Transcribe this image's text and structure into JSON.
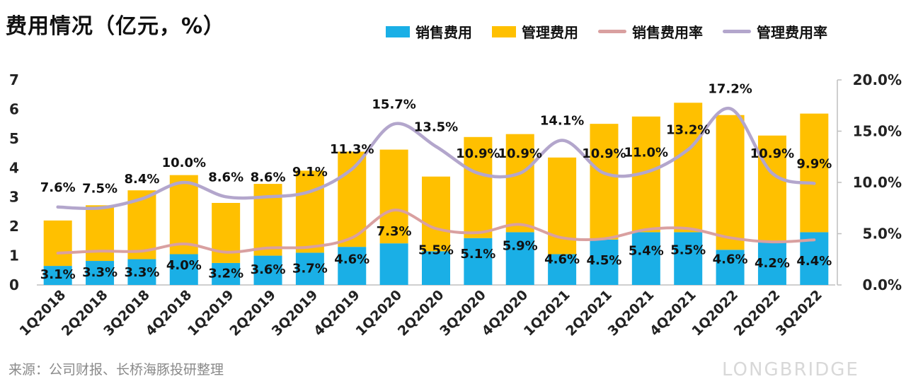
{
  "title": "费用情况（亿元，%）",
  "source": "来源：公司财报、长桥海豚投研整理",
  "watermark": "LONGBRIDGE",
  "colors": {
    "sales_bar": "#1AAFE6",
    "admin_bar": "#FFC000",
    "sales_rate_line": "#D9A0A0",
    "admin_rate_line": "#B3A6CC"
  },
  "chart_data": {
    "type": "bar",
    "stacked": true,
    "categories": [
      "1Q2018",
      "2Q2018",
      "3Q2018",
      "4Q2018",
      "1Q2019",
      "2Q2019",
      "3Q2019",
      "4Q2019",
      "1Q2020",
      "2Q2020",
      "3Q2020",
      "4Q2020",
      "1Q2021",
      "2Q2021",
      "3Q2021",
      "4Q2021",
      "1Q2022",
      "2Q2022",
      "3Q2022"
    ],
    "series": [
      {
        "name": "销售费用",
        "type": "bar",
        "axis": "left",
        "values": [
          0.65,
          0.82,
          0.88,
          1.05,
          0.75,
          1.0,
          1.1,
          1.3,
          1.42,
          1.15,
          1.6,
          1.8,
          1.05,
          1.55,
          1.8,
          1.8,
          1.2,
          1.45,
          1.8
        ]
      },
      {
        "name": "管理费用",
        "type": "bar",
        "axis": "left",
        "values": [
          1.55,
          1.9,
          2.35,
          2.7,
          2.05,
          2.45,
          2.8,
          3.25,
          3.2,
          2.55,
          3.45,
          3.35,
          3.3,
          3.95,
          3.95,
          4.42,
          4.6,
          3.65,
          4.05
        ]
      },
      {
        "name": "销售费用率",
        "type": "line",
        "axis": "right",
        "values": [
          3.1,
          3.3,
          3.3,
          4.0,
          3.2,
          3.6,
          3.7,
          4.6,
          7.3,
          5.5,
          5.1,
          5.9,
          4.6,
          4.5,
          5.4,
          5.5,
          4.6,
          4.2,
          4.4
        ],
        "labels": [
          "3.1%",
          "3.3%",
          "3.3%",
          "4.0%",
          "3.2%",
          "3.6%",
          "3.7%",
          "4.6%",
          "7.3%",
          "5.5%",
          "5.1%",
          "5.9%",
          "4.6%",
          "4.5%",
          "5.4%",
          "5.5%",
          "4.6%",
          "4.2%",
          "4.4%"
        ]
      },
      {
        "name": "管理费用率",
        "type": "line",
        "axis": "right",
        "values": [
          7.6,
          7.5,
          8.4,
          10.0,
          8.6,
          8.6,
          9.1,
          11.3,
          15.7,
          13.5,
          10.9,
          10.9,
          14.1,
          10.9,
          11.0,
          13.2,
          17.2,
          10.9,
          9.9
        ],
        "labels": [
          "7.6%",
          "7.5%",
          "8.4%",
          "10.0%",
          "8.6%",
          "8.6%",
          "9.1%",
          "11.3%",
          "15.7%",
          "13.5%",
          "10.9%",
          "10.9%",
          "14.1%",
          "10.9%",
          "11.0%",
          "13.2%",
          "17.2%",
          "10.9%",
          "9.9%"
        ]
      }
    ],
    "y_left": {
      "min": 0,
      "max": 7,
      "ticks": [
        "0",
        "1",
        "2",
        "3",
        "4",
        "5",
        "6",
        "7"
      ]
    },
    "y_right": {
      "min": 0,
      "max": 20,
      "ticks": [
        "0.0%",
        "5.0%",
        "10.0%",
        "15.0%",
        "20.0%"
      ]
    },
    "grid": false,
    "legend": "top-right"
  }
}
